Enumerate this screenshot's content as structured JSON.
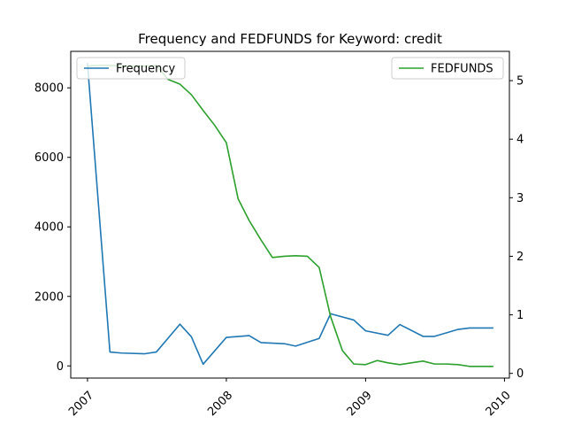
{
  "chart_data": {
    "type": "line",
    "title": "Frequency and FEDFUNDS for Keyword: credit",
    "xlabel": "",
    "ylabel_left": "",
    "ylabel_right": "",
    "x_ticks": [
      "2007",
      "2008",
      "2009",
      "2010"
    ],
    "xlim": [
      "2006-11-18",
      "2010-01-14"
    ],
    "y_left_ticks": [
      "0",
      "2000",
      "4000",
      "6000",
      "8000"
    ],
    "y_left_lim": [
      -350,
      9050
    ],
    "y_right_ticks": [
      "0",
      "1",
      "2",
      "3",
      "4",
      "5"
    ],
    "y_right_lim": [
      -0.08,
      5.5
    ],
    "grid": false,
    "series": [
      {
        "name": "Frequency",
        "axis": "left",
        "color": "#1f77b4",
        "legend_position": "upper-left",
        "x": [
          "2007-01-01",
          "2007-03-01",
          "2007-04-01",
          "2007-06-01",
          "2007-07-01",
          "2007-09-01",
          "2007-10-01",
          "2007-11-01",
          "2008-01-01",
          "2008-03-01",
          "2008-04-01",
          "2008-06-01",
          "2008-07-01",
          "2008-09-01",
          "2008-10-01",
          "2008-12-01",
          "2009-01-01",
          "2009-03-01",
          "2009-04-01",
          "2009-06-01",
          "2009-07-01",
          "2009-09-01",
          "2009-10-01",
          "2009-12-01"
        ],
        "values": [
          8700,
          400,
          370,
          350,
          400,
          1200,
          840,
          50,
          820,
          870,
          670,
          640,
          570,
          790,
          1500,
          1320,
          1010,
          880,
          1190,
          850,
          850,
          1050,
          1090,
          1090
        ]
      },
      {
        "name": "FEDFUNDS",
        "axis": "right",
        "color": "#2ca02c",
        "legend_position": "upper-right",
        "x": [
          "2007-01-01",
          "2007-02-01",
          "2007-03-01",
          "2007-04-01",
          "2007-05-01",
          "2007-06-01",
          "2007-07-01",
          "2007-08-01",
          "2007-09-01",
          "2007-10-01",
          "2007-11-01",
          "2007-12-01",
          "2008-01-01",
          "2008-02-01",
          "2008-03-01",
          "2008-04-01",
          "2008-05-01",
          "2008-06-01",
          "2008-07-01",
          "2008-08-01",
          "2008-09-01",
          "2008-10-01",
          "2008-11-01",
          "2008-12-01",
          "2009-01-01",
          "2009-02-01",
          "2009-03-01",
          "2009-04-01",
          "2009-05-01",
          "2009-06-01",
          "2009-07-01",
          "2009-08-01",
          "2009-09-01",
          "2009-10-01",
          "2009-11-01",
          "2009-12-01"
        ],
        "values": [
          5.25,
          5.26,
          5.26,
          5.25,
          5.25,
          5.25,
          5.26,
          5.02,
          4.94,
          4.76,
          4.49,
          4.24,
          3.94,
          2.98,
          2.61,
          2.28,
          1.98,
          2.0,
          2.01,
          2.0,
          1.81,
          0.97,
          0.39,
          0.16,
          0.15,
          0.22,
          0.18,
          0.15,
          0.18,
          0.21,
          0.16,
          0.16,
          0.15,
          0.12,
          0.12,
          0.12
        ]
      }
    ]
  }
}
